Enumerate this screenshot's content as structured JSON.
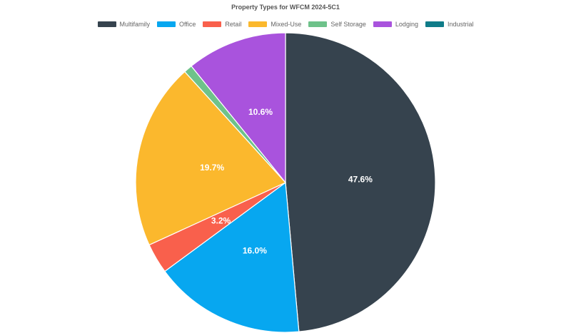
{
  "chart_data": {
    "type": "pie",
    "title": "Property Types for WFCM 2024-5C1",
    "slices": [
      {
        "name": "Multifamily",
        "value": 47.6,
        "label": "47.6%",
        "color": "#36434e"
      },
      {
        "name": "Office",
        "value": 16.0,
        "label": "16.0%",
        "color": "#07a7f0"
      },
      {
        "name": "Retail",
        "value": 3.2,
        "label": "3.2%",
        "color": "#f9604c"
      },
      {
        "name": "Mixed-Use",
        "value": 19.7,
        "label": "19.7%",
        "color": "#fbb82d"
      },
      {
        "name": "Self Storage",
        "value": 0.9,
        "label": "",
        "color": "#6ec28a"
      },
      {
        "name": "Lodging",
        "value": 10.6,
        "label": "10.6%",
        "color": "#a953dd"
      },
      {
        "name": "Industrial",
        "value": 0.0,
        "label": "",
        "color": "#0f7c89"
      }
    ],
    "legend_position": "top"
  }
}
